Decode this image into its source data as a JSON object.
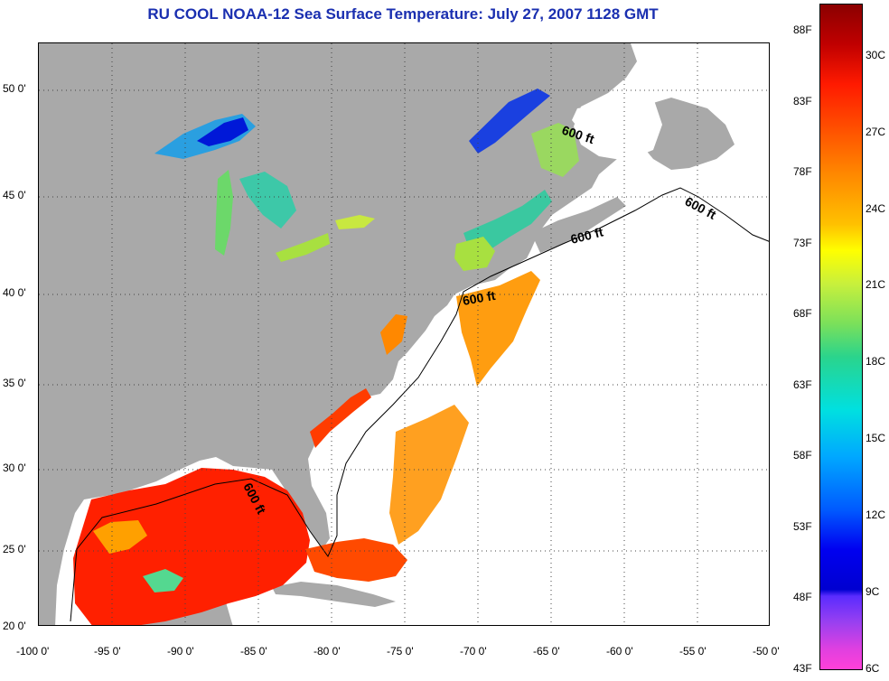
{
  "title": "RU COOL  NOAA-12  Sea Surface Temperature:  July 27, 2007 1128 GMT",
  "map": {
    "lon_labels": [
      "-100 0'",
      "-95 0'",
      "-90 0'",
      "-85 0'",
      "-80 0'",
      "-75 0'",
      "-70 0'",
      "-65 0'",
      "-60 0'",
      "-55 0'",
      "-50 0'"
    ],
    "lat_labels": [
      "50 0'",
      "45 0'",
      "40 0'",
      "35 0'",
      "30 0'",
      "25 0'",
      "20 0'"
    ],
    "isobath_labels": [
      "600 ft",
      "600 ft",
      "600 ft",
      "600 ft",
      "600 ft"
    ],
    "colors": {
      "land": "#a9a9a9",
      "ocean_no_data": "#ffffff",
      "warm": "#ff2a00",
      "orange": "#ff9900",
      "cold": "#0030e0"
    }
  },
  "colorbar": {
    "fahrenheit": [
      "88F",
      "83F",
      "78F",
      "73F",
      "68F",
      "63F",
      "58F",
      "53F",
      "48F",
      "43F"
    ],
    "celsius": [
      "30C",
      "27C",
      "24C",
      "21C",
      "18C",
      "15C",
      "12C",
      "9C",
      "6C"
    ]
  }
}
